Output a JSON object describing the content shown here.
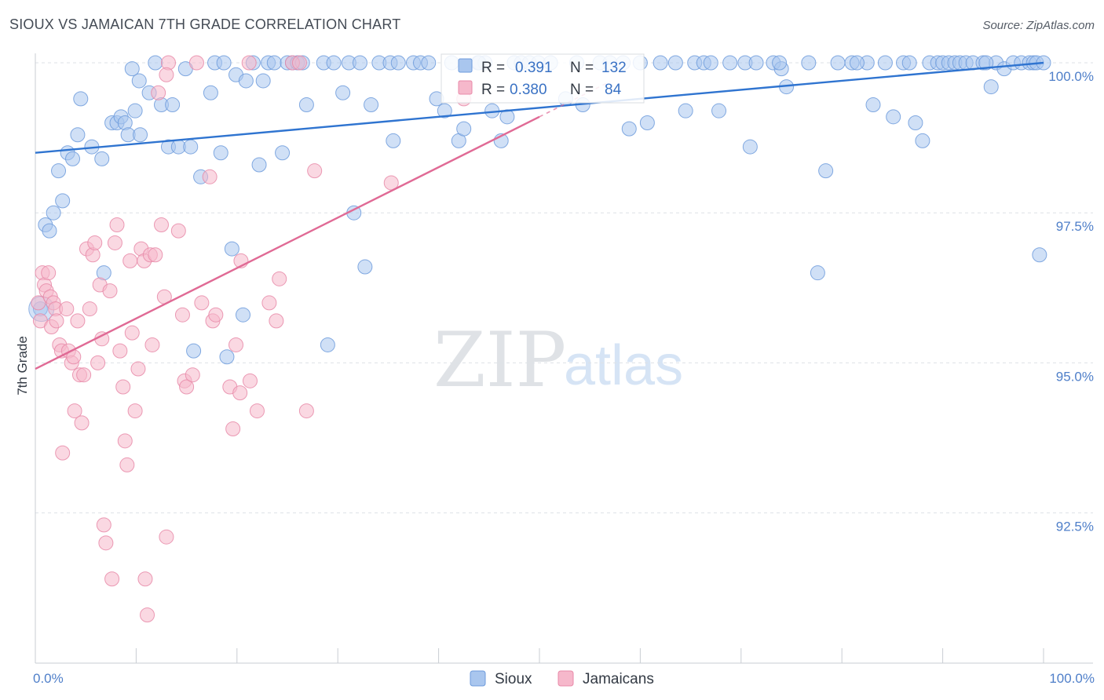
{
  "header": {
    "title": "SIOUX VS JAMAICAN 7TH GRADE CORRELATION CHART",
    "source": "Source: ZipAtlas.com"
  },
  "legend": {
    "r_label": "R =",
    "n_label": "N =",
    "sioux": {
      "r": "0.391",
      "n": "132"
    },
    "jamaicans": {
      "r": "0.380",
      "n": "84"
    }
  },
  "watermark": {
    "zip": "ZIP",
    "atlas": "atlas"
  },
  "colors": {
    "sioux_fill": "#a9c6ee",
    "sioux_stroke": "#6d9bdc",
    "sioux_line": "#2f74d0",
    "jam_fill": "#f6b8cb",
    "jam_stroke": "#e889a8",
    "jam_line": "#e06a95",
    "grid": "#dde1e6",
    "tick_label": "#4f7fc9"
  },
  "chart_data": {
    "type": "scatter",
    "title": "SIOUX VS JAMAICAN 7TH GRADE CORRELATION CHART",
    "xlabel": "",
    "ylabel": "7th Grade",
    "xlim": [
      0,
      100
    ],
    "ylim": [
      89.5,
      100.4
    ],
    "y_ticks": [
      {
        "value": 100.0,
        "label": "100.0%"
      },
      {
        "value": 97.5,
        "label": "97.5%"
      },
      {
        "value": 95.0,
        "label": "95.0%"
      },
      {
        "value": 92.5,
        "label": "92.5%"
      }
    ],
    "x_ticks": [
      {
        "value": 0,
        "label": "0.0%"
      },
      {
        "value": 100,
        "label": "100.0%"
      }
    ],
    "grid": true,
    "legend_position": "top-center",
    "series": [
      {
        "name": "Sioux",
        "r": 0.391,
        "n": 132,
        "trend": [
          [
            0,
            98.5
          ],
          [
            100,
            100.0
          ]
        ],
        "points": [
          [
            0.5,
            95.9
          ],
          [
            1.0,
            97.3
          ],
          [
            1.4,
            97.2
          ],
          [
            1.8,
            97.5
          ],
          [
            2.3,
            98.2
          ],
          [
            2.7,
            97.7
          ],
          [
            3.2,
            98.5
          ],
          [
            3.7,
            98.4
          ],
          [
            4.2,
            98.8
          ],
          [
            4.5,
            99.4
          ],
          [
            5.6,
            98.6
          ],
          [
            6.6,
            98.4
          ],
          [
            6.8,
            96.5
          ],
          [
            7.6,
            99.0
          ],
          [
            8.1,
            99.0
          ],
          [
            8.5,
            99.1
          ],
          [
            8.9,
            99.0
          ],
          [
            9.2,
            98.8
          ],
          [
            9.9,
            99.2
          ],
          [
            10.4,
            98.8
          ],
          [
            10.3,
            99.7
          ],
          [
            11.3,
            99.5
          ],
          [
            11.9,
            100.0
          ],
          [
            12.5,
            99.3
          ],
          [
            13.2,
            98.6
          ],
          [
            13.6,
            99.3
          ],
          [
            14.2,
            98.6
          ],
          [
            14.9,
            99.9
          ],
          [
            15.4,
            98.6
          ],
          [
            16.4,
            98.1
          ],
          [
            17.4,
            99.5
          ],
          [
            17.8,
            100.0
          ],
          [
            18.4,
            98.5
          ],
          [
            18.7,
            100.0
          ],
          [
            19.0,
            95.1
          ],
          [
            19.5,
            96.9
          ],
          [
            19.9,
            99.8
          ],
          [
            20.6,
            95.8
          ],
          [
            20.9,
            99.7
          ],
          [
            21.6,
            100.0
          ],
          [
            22.2,
            98.3
          ],
          [
            22.6,
            99.7
          ],
          [
            23.1,
            100.0
          ],
          [
            23.7,
            100.0
          ],
          [
            24.5,
            98.5
          ],
          [
            25.0,
            100.0
          ],
          [
            25.5,
            100.0
          ],
          [
            26.0,
            100.0
          ],
          [
            26.5,
            100.0
          ],
          [
            26.9,
            99.3
          ],
          [
            28.6,
            100.0
          ],
          [
            29.0,
            95.3
          ],
          [
            29.6,
            100.0
          ],
          [
            30.5,
            99.5
          ],
          [
            31.1,
            100.0
          ],
          [
            31.6,
            97.5
          ],
          [
            32.2,
            100.0
          ],
          [
            32.7,
            96.6
          ],
          [
            33.3,
            99.3
          ],
          [
            34.1,
            100.0
          ],
          [
            35.2,
            100.0
          ],
          [
            35.5,
            98.7
          ],
          [
            36.0,
            100.0
          ],
          [
            37.5,
            100.0
          ],
          [
            38.2,
            100.0
          ],
          [
            39.0,
            100.0
          ],
          [
            39.8,
            99.4
          ],
          [
            40.6,
            99.2
          ],
          [
            41.3,
            100.0
          ],
          [
            42.0,
            98.7
          ],
          [
            42.5,
            98.9
          ],
          [
            43.9,
            100.0
          ],
          [
            44.6,
            100.0
          ],
          [
            45.3,
            99.2
          ],
          [
            46.2,
            98.7
          ],
          [
            46.8,
            99.1
          ],
          [
            47.5,
            100.0
          ],
          [
            48.2,
            100.0
          ],
          [
            49.0,
            100.0
          ],
          [
            49.9,
            100.0
          ],
          [
            51.1,
            100.0
          ],
          [
            52.6,
            99.4
          ],
          [
            53.7,
            100.0
          ],
          [
            54.3,
            99.3
          ],
          [
            56.0,
            100.0
          ],
          [
            57.0,
            100.0
          ],
          [
            58.3,
            100.0
          ],
          [
            58.9,
            98.9
          ],
          [
            60.0,
            100.0
          ],
          [
            60.7,
            99.0
          ],
          [
            62.0,
            100.0
          ],
          [
            63.5,
            100.0
          ],
          [
            64.5,
            99.2
          ],
          [
            65.4,
            100.0
          ],
          [
            66.3,
            100.0
          ],
          [
            67.8,
            99.2
          ],
          [
            68.9,
            100.0
          ],
          [
            70.4,
            100.0
          ],
          [
            70.9,
            98.6
          ],
          [
            71.5,
            100.0
          ],
          [
            73.2,
            100.0
          ],
          [
            74.0,
            99.9
          ],
          [
            74.5,
            99.6
          ],
          [
            76.7,
            100.0
          ],
          [
            77.6,
            96.5
          ],
          [
            78.4,
            98.2
          ],
          [
            79.6,
            100.0
          ],
          [
            81.0,
            100.0
          ],
          [
            82.5,
            100.0
          ],
          [
            83.1,
            99.3
          ],
          [
            84.3,
            100.0
          ],
          [
            85.1,
            99.1
          ],
          [
            86.1,
            100.0
          ],
          [
            86.7,
            100.0
          ],
          [
            87.3,
            99.0
          ],
          [
            88.0,
            98.7
          ],
          [
            88.7,
            100.0
          ],
          [
            89.5,
            100.0
          ],
          [
            90.0,
            100.0
          ],
          [
            90.6,
            100.0
          ],
          [
            91.2,
            100.0
          ],
          [
            91.7,
            100.0
          ],
          [
            92.3,
            100.0
          ],
          [
            93.0,
            100.0
          ],
          [
            94.0,
            100.0
          ],
          [
            94.8,
            99.6
          ],
          [
            95.3,
            100.0
          ],
          [
            96.1,
            99.9
          ],
          [
            97.0,
            100.0
          ],
          [
            97.8,
            100.0
          ],
          [
            98.6,
            100.0
          ],
          [
            99.0,
            100.0
          ],
          [
            99.3,
            100.0
          ],
          [
            99.6,
            96.8
          ],
          [
            100.0,
            100.0
          ],
          [
            94.3,
            100.0
          ],
          [
            15.7,
            95.2
          ],
          [
            44.0,
            100.0
          ],
          [
            9.6,
            99.9
          ],
          [
            67.0,
            100.0
          ],
          [
            81.5,
            100.0
          ],
          [
            73.8,
            100.0
          ]
        ]
      },
      {
        "name": "Jamaicans",
        "r": 0.38,
        "n": 84,
        "trend": [
          [
            0,
            94.9
          ],
          [
            50,
            99.1
          ]
        ],
        "points": [
          [
            0.3,
            96.0
          ],
          [
            0.5,
            95.7
          ],
          [
            0.7,
            96.5
          ],
          [
            0.9,
            96.3
          ],
          [
            1.1,
            96.2
          ],
          [
            1.3,
            96.5
          ],
          [
            1.5,
            96.1
          ],
          [
            1.6,
            95.6
          ],
          [
            1.8,
            96.0
          ],
          [
            2.0,
            95.9
          ],
          [
            2.1,
            95.7
          ],
          [
            2.4,
            95.3
          ],
          [
            2.6,
            95.2
          ],
          [
            2.7,
            93.5
          ],
          [
            3.1,
            95.9
          ],
          [
            3.3,
            95.2
          ],
          [
            3.6,
            95.0
          ],
          [
            3.8,
            95.1
          ],
          [
            3.9,
            94.2
          ],
          [
            4.2,
            95.7
          ],
          [
            4.4,
            94.8
          ],
          [
            4.6,
            94.0
          ],
          [
            4.8,
            94.8
          ],
          [
            5.1,
            96.9
          ],
          [
            5.4,
            95.9
          ],
          [
            5.7,
            96.8
          ],
          [
            5.9,
            97.0
          ],
          [
            6.2,
            95.0
          ],
          [
            6.4,
            96.3
          ],
          [
            6.6,
            95.4
          ],
          [
            6.8,
            92.3
          ],
          [
            7.0,
            92.0
          ],
          [
            7.4,
            96.2
          ],
          [
            7.6,
            91.4
          ],
          [
            7.9,
            97.0
          ],
          [
            8.1,
            97.3
          ],
          [
            8.4,
            95.2
          ],
          [
            8.7,
            94.6
          ],
          [
            8.9,
            93.7
          ],
          [
            9.1,
            93.3
          ],
          [
            9.4,
            96.7
          ],
          [
            9.6,
            95.5
          ],
          [
            9.9,
            94.2
          ],
          [
            10.2,
            94.9
          ],
          [
            10.5,
            96.9
          ],
          [
            10.8,
            96.7
          ],
          [
            10.9,
            91.4
          ],
          [
            11.1,
            90.8
          ],
          [
            11.4,
            96.8
          ],
          [
            11.6,
            95.3
          ],
          [
            11.9,
            96.8
          ],
          [
            12.2,
            99.5
          ],
          [
            12.5,
            97.3
          ],
          [
            12.8,
            96.1
          ],
          [
            13.0,
            92.1
          ],
          [
            13.2,
            100.0
          ],
          [
            13.0,
            99.8
          ],
          [
            14.2,
            97.2
          ],
          [
            14.6,
            95.8
          ],
          [
            14.8,
            94.7
          ],
          [
            15.0,
            94.6
          ],
          [
            15.6,
            94.8
          ],
          [
            16.0,
            100.0
          ],
          [
            16.5,
            96.0
          ],
          [
            17.3,
            98.1
          ],
          [
            17.6,
            95.7
          ],
          [
            17.9,
            95.8
          ],
          [
            19.3,
            94.6
          ],
          [
            19.6,
            93.9
          ],
          [
            19.9,
            95.3
          ],
          [
            20.3,
            94.5
          ],
          [
            20.4,
            96.7
          ],
          [
            21.2,
            100.0
          ],
          [
            22.0,
            94.2
          ],
          [
            23.2,
            96.0
          ],
          [
            23.9,
            95.7
          ],
          [
            24.2,
            96.4
          ],
          [
            25.5,
            100.0
          ],
          [
            26.2,
            100.0
          ],
          [
            26.9,
            94.2
          ],
          [
            27.7,
            98.2
          ],
          [
            35.3,
            98.0
          ],
          [
            42.5,
            99.4
          ],
          [
            21.3,
            94.7
          ]
        ]
      }
    ]
  },
  "bottom_legend": [
    {
      "label": "Sioux",
      "swatch": "sioux"
    },
    {
      "label": "Jamaicans",
      "swatch": "jam"
    }
  ]
}
